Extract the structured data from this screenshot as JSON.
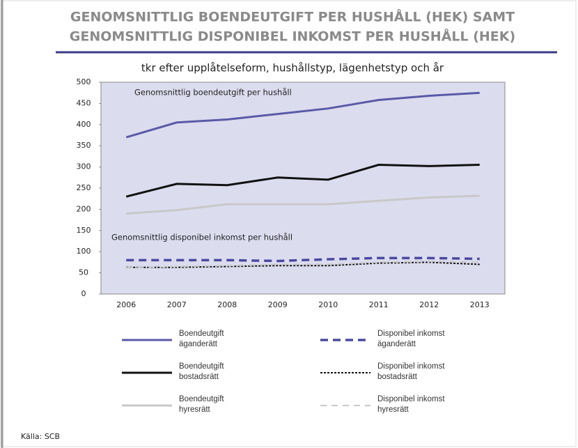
{
  "chart_data": {
    "type": "line",
    "title": [
      "GENOMSNITTLIG BOENDEUTGIFT PER HUSHÅLL (HEK) SAMT",
      "GENOMSNITTLIG DISPONIBEL INKOMST PER HUSHÅLL (HEK)"
    ],
    "subtitle": "tkr efter upplåtelseform, hushållstyp, lägenhetstyp och år",
    "annotations": [
      "Genomsnittlig boendeutgift per hushåll",
      "Genomsnittlig disponibel inkomst per hushåll"
    ],
    "source": "Källa: SCB",
    "categories": [
      "2006",
      "2007",
      "2008",
      "2009",
      "2010",
      "2011",
      "2012",
      "2013"
    ],
    "ylim": [
      0,
      500
    ],
    "yticks": [
      0,
      50,
      100,
      150,
      200,
      250,
      300,
      350,
      400,
      450,
      500
    ],
    "series": [
      {
        "name": "Boendeutgift äganderätt",
        "color": "#5a5aa8",
        "style": "solid",
        "values": [
          370,
          405,
          412,
          425,
          438,
          458,
          468,
          475
        ]
      },
      {
        "name": "Boendeutgift bostadsrätt",
        "color": "#111111",
        "style": "solid",
        "values": [
          230,
          260,
          257,
          275,
          270,
          305,
          302,
          305
        ]
      },
      {
        "name": "Boendeutgift hyresrätt",
        "color": "#c8c8c8",
        "style": "solid",
        "values": [
          190,
          198,
          212,
          212,
          212,
          220,
          228,
          232
        ]
      },
      {
        "name": "Disponibel inkomst äganderätt",
        "color": "#4a4aa0",
        "style": "dashed",
        "values": [
          80,
          80,
          80,
          78,
          82,
          85,
          85,
          83
        ]
      },
      {
        "name": "Disponibel inkomst bostadsrätt",
        "color": "#111111",
        "style": "dotted",
        "values": [
          63,
          63,
          65,
          67,
          67,
          73,
          75,
          70
        ]
      },
      {
        "name": "Disponibel inkomst hyresrätt",
        "color": "#c8c8c8",
        "style": "lightdash",
        "values": [
          62,
          65,
          67,
          70,
          70,
          75,
          77,
          75
        ]
      }
    ]
  }
}
